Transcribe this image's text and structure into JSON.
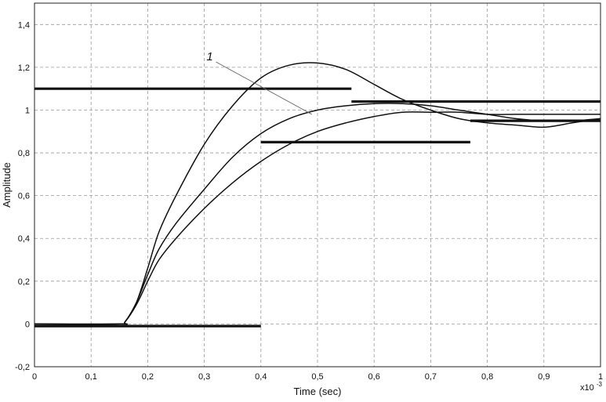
{
  "chart_data": {
    "type": "line",
    "title": "",
    "xlabel": "Time (sec)",
    "ylabel": "Amplitude",
    "x_multiplier_label": "x10",
    "x_multiplier_exponent": "-3",
    "xlim": [
      0,
      1
    ],
    "ylim": [
      -0.2,
      1.5
    ],
    "grid": true,
    "x_ticks": [
      "0",
      "0,1",
      "0,2",
      "0,3",
      "0,4",
      "0,5",
      "0,6",
      "0,7",
      "0,8",
      "0,9",
      "1"
    ],
    "y_ticks": [
      "-0,2",
      "0",
      "0,2",
      "0,4",
      "0,6",
      "0,8",
      "1",
      "1,2",
      "1,4"
    ],
    "annotation": {
      "text": "1",
      "from": [
        0.315,
        1.24
      ],
      "to": [
        0.49,
        0.98
      ]
    },
    "series": [
      {
        "x": [
          0.0,
          0.15,
          0.16,
          0.18,
          0.2,
          0.22,
          0.25,
          0.3,
          0.35,
          0.4,
          0.45,
          0.5,
          0.55,
          0.6,
          0.65,
          0.7,
          0.75,
          0.8,
          0.85,
          0.9,
          0.95,
          1.0
        ],
        "y": [
          0.0,
          0.0,
          0.01,
          0.1,
          0.26,
          0.43,
          0.6,
          0.84,
          1.02,
          1.15,
          1.21,
          1.22,
          1.19,
          1.12,
          1.05,
          1.0,
          0.96,
          0.94,
          0.93,
          0.92,
          0.94,
          0.96
        ]
      },
      {
        "x": [
          0.0,
          0.15,
          0.16,
          0.18,
          0.2,
          0.22,
          0.25,
          0.3,
          0.35,
          0.4,
          0.45,
          0.5,
          0.55,
          0.6,
          0.65,
          0.7,
          0.75,
          0.8,
          0.85,
          0.9,
          0.95,
          1.0
        ],
        "y": [
          0.0,
          0.0,
          0.01,
          0.1,
          0.23,
          0.35,
          0.47,
          0.63,
          0.78,
          0.89,
          0.96,
          1.0,
          1.02,
          1.03,
          1.03,
          1.02,
          1.0,
          0.98,
          0.96,
          0.95,
          0.95,
          0.96
        ]
      },
      {
        "x": [
          0.0,
          0.15,
          0.16,
          0.18,
          0.2,
          0.22,
          0.25,
          0.3,
          0.35,
          0.4,
          0.45,
          0.5,
          0.55,
          0.6,
          0.65,
          0.7,
          0.75,
          0.8,
          0.85,
          0.9,
          0.95,
          1.0
        ],
        "y": [
          0.0,
          0.0,
          0.01,
          0.09,
          0.2,
          0.3,
          0.4,
          0.54,
          0.66,
          0.76,
          0.84,
          0.9,
          0.94,
          0.97,
          0.99,
          0.99,
          0.99,
          0.98,
          0.98,
          0.98,
          0.98,
          0.98
        ]
      }
    ],
    "bounds": [
      {
        "x": [
          0.0,
          0.56
        ],
        "y": 1.1
      },
      {
        "x": [
          0.56,
          1.0
        ],
        "y": 1.04
      },
      {
        "x": [
          0.4,
          0.77
        ],
        "y": 0.85
      },
      {
        "x": [
          0.77,
          1.0
        ],
        "y": 0.95
      },
      {
        "x": [
          0.0,
          0.4
        ],
        "y": -0.01
      }
    ]
  }
}
